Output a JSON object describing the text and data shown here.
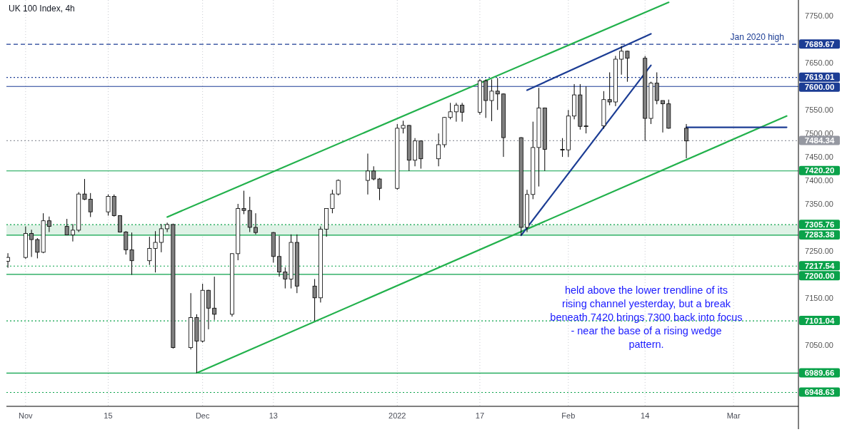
{
  "chart_data": {
    "type": "candlestick",
    "title": "UK 100 Index, 4h",
    "xlim": [
      "2021-10-28T18:00",
      "2022-03-12"
    ],
    "xticks": [
      {
        "value": "2021-11-01",
        "label": "Nov"
      },
      {
        "value": "2021-11-15",
        "label": "15"
      },
      {
        "value": "2021-12-01",
        "label": "Dec"
      },
      {
        "value": "2021-12-13",
        "label": "13"
      },
      {
        "value": "2022-01-03",
        "label": "2022"
      },
      {
        "value": "2022-01-17",
        "label": "17"
      },
      {
        "value": "2022-02-01",
        "label": "Feb"
      },
      {
        "value": "2022-02-14",
        "label": "14"
      },
      {
        "value": "2022-03-01",
        "label": "Mar"
      }
    ],
    "ylim": [
      6919,
      7784
    ],
    "yticks": [
      {
        "value": 7050,
        "label": "7050.00"
      },
      {
        "value": 7150,
        "label": "7150.00"
      },
      {
        "value": 7250,
        "label": "7250.00"
      },
      {
        "value": 7350,
        "label": "7350.00"
      },
      {
        "value": 7400,
        "label": "7400.00"
      },
      {
        "value": 7450,
        "label": "7450.00"
      },
      {
        "value": 7500,
        "label": "7500.00"
      },
      {
        "value": 7550,
        "label": "7550.00"
      },
      {
        "value": 7650,
        "label": "7650.00"
      },
      {
        "value": 7750,
        "label": "7750.00"
      }
    ],
    "grid": "x",
    "series": [
      {
        "colors": [
          "#ffffff",
          "#ffffff",
          "#808080",
          "#808080",
          "#ffffff",
          "#808080",
          "#808080",
          "#ffffff",
          "#ffffff",
          "#808080",
          "#808080",
          "#ffffff",
          "#808080",
          "#808080",
          "#808080",
          "#808080",
          "#ffffff",
          "#ffffff",
          "#ffffff",
          "#ffffff",
          "#808080",
          "#ffffff",
          "#808080",
          "#ffffff",
          "#808080",
          "#808080",
          "#ffffff",
          "#ffffff",
          "#808080",
          "#808080",
          "#808080",
          "#808080",
          "#808080",
          "#808080",
          "#ffffff",
          "#808080",
          "#808080",
          "#ffffff",
          "#ffffff",
          "#ffffff",
          "#ffffff",
          "#ffffff",
          "#808080",
          "#808080",
          "#ffffff",
          "#ffffff",
          "#808080",
          "#ffffff",
          "#808080",
          "#ffffff",
          "#ffffff",
          "#ffffff",
          "#ffffff",
          "#808080",
          "#ffffff",
          "#808080",
          "#ffffff",
          "#808080",
          "#808080",
          "#808080",
          "#ffffff",
          "#ffffff",
          "#ffffff",
          "#808080",
          "#808080",
          "#ffffff",
          "#ffffff",
          "#808080",
          "#ffffff",
          "#ffffff",
          "#808080",
          "#ffffff",
          "#ffffff",
          "#808080",
          "#808080",
          "#ffffff",
          "#808080",
          "#808080",
          "#808080",
          "#808080"
        ],
        "x": [
          "2021-10-29",
          "2021-11-01",
          "2021-11-02",
          "2021-11-03",
          "2021-11-04",
          "2021-11-05",
          "2021-11-08",
          "2021-11-09",
          "2021-11-10",
          "2021-11-11",
          "2021-11-12",
          "2021-11-15",
          "2021-11-16",
          "2021-11-17",
          "2021-11-18",
          "2021-11-19",
          "2021-11-22",
          "2021-11-23",
          "2021-11-24",
          "2021-11-25",
          "2021-11-26",
          "2021-11-29",
          "2021-11-30",
          "2021-12-01",
          "2021-12-02",
          "2021-12-03",
          "2021-12-06",
          "2021-12-07",
          "2021-12-08",
          "2021-12-09",
          "2021-12-10",
          "2021-12-13",
          "2021-12-14",
          "2021-12-15",
          "2021-12-16",
          "2021-12-17",
          "2021-12-20",
          "2021-12-21",
          "2021-12-22",
          "2021-12-23",
          "2021-12-24",
          "2021-12-29",
          "2021-12-30",
          "2021-12-31",
          "2022-01-03",
          "2022-01-04",
          "2022-01-05",
          "2022-01-06",
          "2022-01-07",
          "2022-01-10",
          "2022-01-11",
          "2022-01-12",
          "2022-01-13",
          "2022-01-14",
          "2022-01-17",
          "2022-01-18",
          "2022-01-19",
          "2022-01-20",
          "2022-01-21",
          "2022-01-24",
          "2022-01-25",
          "2022-01-26",
          "2022-01-27",
          "2022-01-28",
          "2022-01-31",
          "2022-02-01",
          "2022-02-02",
          "2022-02-03",
          "2022-02-04",
          "2022-02-07",
          "2022-02-08",
          "2022-02-09",
          "2022-02-10",
          "2022-02-11",
          "2022-02-14",
          "2022-02-15",
          "2022-02-16",
          "2022-02-17",
          "2022-02-18",
          "2022-02-21"
        ],
        "ohlc": [
          [
            7228,
            7245,
            7214,
            7236
          ],
          [
            7236,
            7302,
            7233,
            7287
          ],
          [
            7287,
            7295,
            7237,
            7274
          ],
          [
            7274,
            7277,
            7234,
            7247
          ],
          [
            7247,
            7330,
            7245,
            7314
          ],
          [
            7314,
            7323,
            7290,
            7302
          ],
          [
            7302,
            7318,
            7284,
            7284
          ],
          [
            7284,
            7307,
            7270,
            7294
          ],
          [
            7294,
            7375,
            7290,
            7371
          ],
          [
            7371,
            7403,
            7358,
            7360
          ],
          [
            7360,
            7373,
            7322,
            7333
          ],
          [
            7333,
            7370,
            7325,
            7366
          ],
          [
            7366,
            7370,
            7323,
            7325
          ],
          [
            7325,
            7326,
            7289,
            7290
          ],
          [
            7290,
            7292,
            7242,
            7252
          ],
          [
            7252,
            7289,
            7199,
            7229
          ],
          [
            7229,
            7280,
            7220,
            7255
          ],
          [
            7255,
            7292,
            7204,
            7268
          ],
          [
            7268,
            7307,
            7247,
            7297
          ],
          [
            7297,
            7310,
            7290,
            7306
          ],
          [
            7306,
            7308,
            7042,
            7044
          ],
          [
            7044,
            7160,
            7040,
            7108
          ],
          [
            7108,
            7115,
            6990,
            7058
          ],
          [
            7058,
            7180,
            7055,
            7166
          ],
          [
            7166,
            7167,
            7083,
            7128
          ],
          [
            7128,
            7195,
            7103,
            7115
          ],
          [
            7115,
            7245,
            7110,
            7244
          ],
          [
            7244,
            7350,
            7230,
            7340
          ],
          [
            7340,
            7378,
            7328,
            7336
          ],
          [
            7336,
            7365,
            7290,
            7300
          ],
          [
            7300,
            7330,
            7285,
            7289
          ],
          [
            7289,
            7290,
            7225,
            7238
          ],
          [
            7238,
            7282,
            7195,
            7205
          ],
          [
            7205,
            7215,
            7170,
            7190
          ],
          [
            7190,
            7285,
            7170,
            7268
          ],
          [
            7268,
            7285,
            7160,
            7175
          ],
          [
            7175,
            7190,
            7101,
            7150
          ],
          [
            7150,
            7302,
            7140,
            7296
          ],
          [
            7296,
            7340,
            7280,
            7340
          ],
          [
            7340,
            7380,
            7330,
            7371
          ],
          [
            7371,
            7402,
            7368,
            7400
          ],
          [
            7400,
            7457,
            7370,
            7420
          ],
          [
            7420,
            7430,
            7400,
            7403
          ],
          [
            7403,
            7405,
            7358,
            7383
          ],
          [
            7383,
            7520,
            7380,
            7511
          ],
          [
            7511,
            7527,
            7500,
            7517
          ],
          [
            7517,
            7518,
            7420,
            7443
          ],
          [
            7443,
            7490,
            7430,
            7484
          ],
          [
            7484,
            7485,
            7425,
            7446
          ],
          [
            7446,
            7500,
            7430,
            7476
          ],
          [
            7476,
            7535,
            7470,
            7534
          ],
          [
            7534,
            7565,
            7530,
            7546
          ],
          [
            7546,
            7565,
            7525,
            7560
          ],
          [
            7560,
            7565,
            7525,
            7545
          ],
          [
            7545,
            7616,
            7540,
            7612
          ],
          [
            7612,
            7615,
            7533,
            7570
          ],
          [
            7570,
            7615,
            7526,
            7590
          ],
          [
            7590,
            7618,
            7550,
            7584
          ],
          [
            7584,
            7585,
            7450,
            7491
          ],
          [
            7491,
            7492,
            7283,
            7300
          ],
          [
            7300,
            7380,
            7290,
            7370
          ],
          [
            7370,
            7525,
            7360,
            7470
          ],
          [
            7470,
            7597,
            7387,
            7554
          ],
          [
            7554,
            7555,
            7420,
            7466
          ],
          [
            7466,
            7490,
            7450,
            7465
          ],
          [
            7465,
            7550,
            7450,
            7537
          ],
          [
            7537,
            7605,
            7530,
            7582
          ],
          [
            7582,
            7605,
            7508,
            7515
          ],
          [
            7515,
            7600,
            7500,
            7516
          ],
          [
            7516,
            7590,
            7510,
            7572
          ],
          [
            7572,
            7630,
            7560,
            7567
          ],
          [
            7567,
            7665,
            7558,
            7658
          ],
          [
            7658,
            7686,
            7625,
            7675
          ],
          [
            7675,
            7676,
            7610,
            7660
          ],
          [
            7660,
            7665,
            7484,
            7532
          ],
          [
            7532,
            7610,
            7520,
            7607
          ],
          [
            7607,
            7630,
            7562,
            7570
          ],
          [
            7570,
            7570,
            7502,
            7563
          ],
          [
            7563,
            7572,
            7510,
            7511
          ],
          [
            7511,
            7520,
            7447,
            7484
          ]
        ]
      },
      {
        "type": "line",
        "color": "#22b14c",
        "x": [
          "2021-11-25",
          "2022-02-18"
        ],
        "values": [
          7322,
          7779
        ]
      },
      {
        "type": "line",
        "color": "#22b14c",
        "x": [
          "2021-11-30",
          "2022-03-10"
        ],
        "values": [
          6990,
          7537
        ]
      },
      {
        "type": "line",
        "color": "#1c3d94",
        "x": [
          "2022-01-24",
          "2022-02-15"
        ],
        "values": [
          7283,
          7645
        ]
      },
      {
        "type": "line",
        "color": "#1c3d94",
        "x": [
          "2022-01-25",
          "2022-02-15"
        ],
        "values": [
          7592,
          7712
        ]
      },
      {
        "type": "line",
        "color": "#1c3d94",
        "x": [
          "2022-02-21",
          "2022-03-10"
        ],
        "values": [
          7513,
          7513
        ]
      }
    ],
    "bands": [
      {
        "axis": "y",
        "from": 7283.38,
        "to": 7305.76,
        "color": "#dff2e6"
      }
    ],
    "ref_lines": [
      {
        "axis": "y",
        "value": 7689.67,
        "label": "7689.67",
        "color": "#1c3d94",
        "line_style": "dashed"
      },
      {
        "axis": "y",
        "value": 7619.01,
        "label": "7619.01",
        "color": "#1c3d94",
        "line_style": "dotted"
      },
      {
        "axis": "y",
        "value": 7600.0,
        "label": "7600.00",
        "color": "#1c3d94",
        "line_style": "solid"
      },
      {
        "axis": "y",
        "value": 7484.34,
        "label": "7484.34",
        "color": "#9598a1",
        "line_style": "dotted"
      },
      {
        "axis": "y",
        "value": 7420.2,
        "label": "7420.20",
        "color": "#0aa24a",
        "line_style": "solid"
      },
      {
        "axis": "y",
        "value": 7305.76,
        "label": "7305.76",
        "color": "#0aa24a",
        "line_style": "dotted"
      },
      {
        "axis": "y",
        "value": 7283.38,
        "label": "7283.38",
        "color": "#0aa24a",
        "line_style": "solid"
      },
      {
        "axis": "y",
        "value": 7217.54,
        "label": "7217.54",
        "color": "#0aa24a",
        "line_style": "dotted"
      },
      {
        "axis": "y",
        "value": 7200.0,
        "label": "7200.00",
        "color": "#0aa24a",
        "line_style": "solid"
      },
      {
        "axis": "y",
        "value": 7101.04,
        "label": "7101.04",
        "color": "#0aa24a",
        "line_style": "dotted"
      },
      {
        "axis": "y",
        "value": 6989.66,
        "label": "6989.66",
        "color": "#0aa24a",
        "line_style": "solid"
      },
      {
        "axis": "y",
        "value": 6948.63,
        "label": "6948.63",
        "color": "#0aa24a",
        "line_style": "dotted"
      }
    ],
    "annotations": [
      {
        "text": "Jan 2020 high",
        "x": "2022-03-05",
        "y": 7689.67
      },
      "held above the lower trendline of its rising channel yesterday, but a break beneath 7420 brings 7300 back into focus - near the base of a rising wedge pattern."
    ]
  }
}
